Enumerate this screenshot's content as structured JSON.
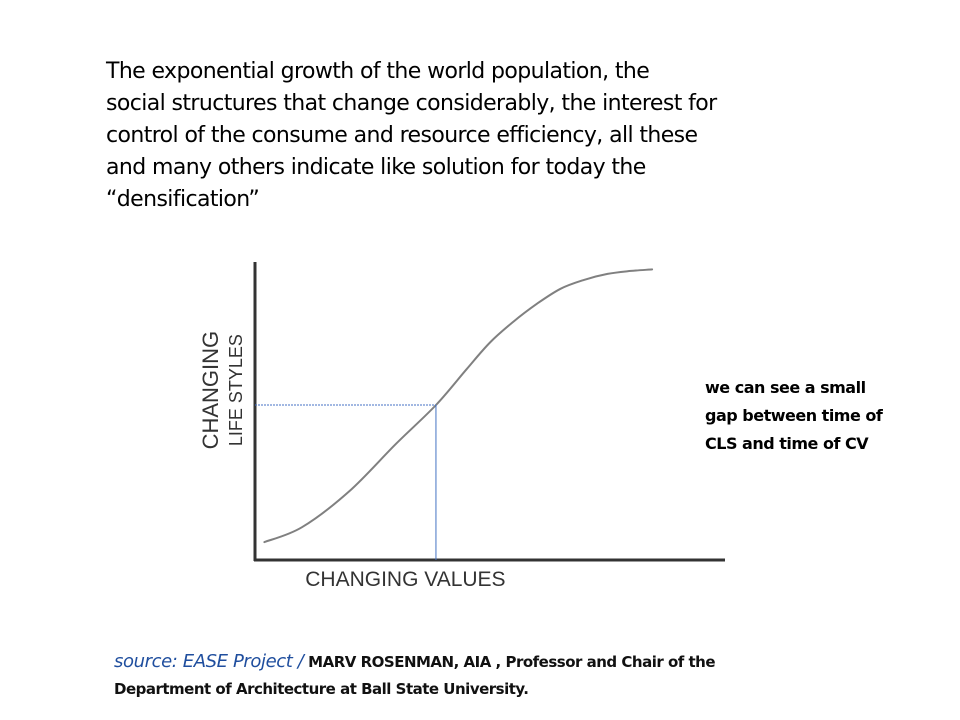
{
  "intro": {
    "lines": [
      "The exponential growth of the world population, the",
      "social structures that change considerably, the interest for",
      "control of the consume and resource efficiency, all these",
      "and many others indicate like solution for today the",
      "“densification”"
    ]
  },
  "chart_data": {
    "type": "line",
    "title": "",
    "xlabel": "CHANGING  VALUES",
    "ylabel": [
      "CHANGING",
      "LIFE STYLES"
    ],
    "xlim": [
      0,
      10
    ],
    "ylim": [
      0,
      10
    ],
    "grid": false,
    "legend": "none",
    "series": [
      {
        "color": "#808080",
        "x": [
          0.2,
          1.0,
          2.0,
          3.0,
          3.85,
          4.5,
          5.0,
          5.5,
          6.0,
          6.5,
          7.0,
          7.5,
          8.0,
          8.45
        ],
        "y": [
          0.6,
          1.1,
          2.3,
          3.9,
          5.2,
          6.4,
          7.3,
          8.0,
          8.6,
          9.1,
          9.4,
          9.6,
          9.7,
          9.75
        ]
      }
    ],
    "reference_point": {
      "x": 3.85,
      "y": 5.2,
      "color": "#4472c4"
    },
    "axis_color": "#333333"
  },
  "note": {
    "lines": [
      "we can see a small",
      "gap between time of",
      "CLS and time of CV"
    ]
  },
  "source": {
    "link_text": "source: EASE Project /",
    "rest_line1": " MARV ROSENMAN, AIA , Professor and Chair of the",
    "line2": "Department of Architecture at Ball State University."
  }
}
